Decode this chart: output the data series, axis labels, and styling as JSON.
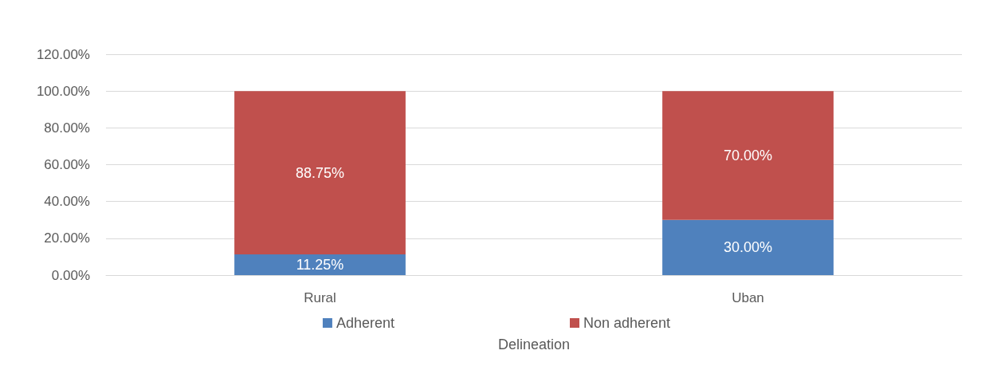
{
  "chart_data": {
    "type": "bar",
    "stacked": true,
    "xlabel": "Delineation",
    "categories": [
      "Rural",
      "Uban"
    ],
    "series": [
      {
        "name": "Adherent",
        "color": "#4f81bd",
        "values": [
          11.25,
          30
        ],
        "value_labels": [
          "11.25%",
          "30.00%"
        ]
      },
      {
        "name": "Non adherent",
        "color": "#c0504d",
        "values": [
          88.75,
          70
        ],
        "value_labels": [
          "88.75%",
          "70.00%"
        ]
      }
    ],
    "ylim": [
      0,
      120
    ],
    "yticks": [
      {
        "value": 0,
        "label": "0.00%"
      },
      {
        "value": 20,
        "label": "20.00%"
      },
      {
        "value": 40,
        "label": "40.00%"
      },
      {
        "value": 60,
        "label": "60.00%"
      },
      {
        "value": 80,
        "label": "80.00%"
      },
      {
        "value": 100,
        "label": "100.00%"
      },
      {
        "value": 120,
        "label": "120.00%"
      }
    ],
    "grid": "y",
    "legend": "bottom"
  }
}
